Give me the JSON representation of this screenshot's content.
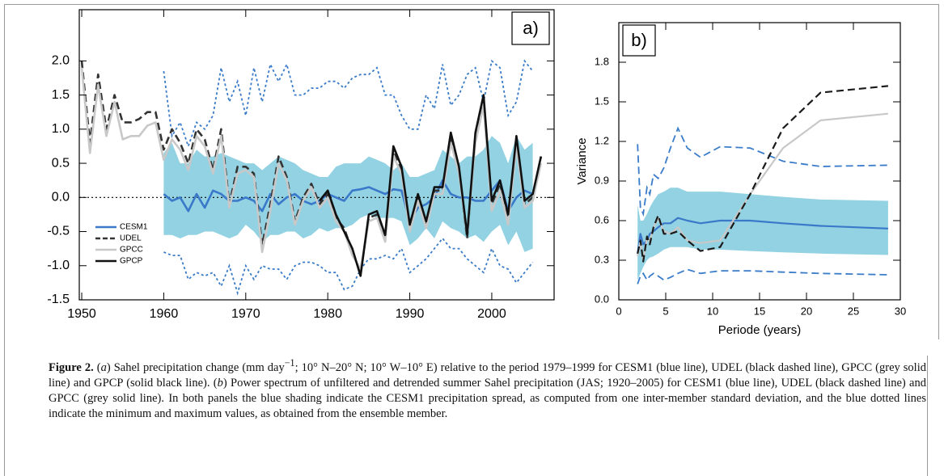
{
  "chart_data": [
    {
      "type": "line",
      "panel_label": "a)",
      "x": [
        1950,
        1951,
        1952,
        1953,
        1954,
        1955,
        1956,
        1957,
        1958,
        1959,
        1960,
        1961,
        1962,
        1963,
        1964,
        1965,
        1966,
        1967,
        1968,
        1969,
        1970,
        1971,
        1972,
        1973,
        1974,
        1975,
        1976,
        1977,
        1978,
        1979,
        1980,
        1981,
        1982,
        1983,
        1984,
        1985,
        1986,
        1987,
        1988,
        1989,
        1990,
        1991,
        1992,
        1993,
        1994,
        1995,
        1996,
        1997,
        1998,
        1999,
        2000,
        2001,
        2002,
        2003,
        2004,
        2005,
        2006
      ],
      "xlim": [
        1949.7,
        2007.6
      ],
      "xticks": [
        1950,
        1960,
        1970,
        1980,
        1990,
        2000
      ],
      "ylim": [
        -1.5,
        2.75
      ],
      "yticks": [
        {
          "value": -1.5,
          "label": "-1.5"
        },
        {
          "value": -1,
          "label": "-1.0"
        },
        {
          "value": -0.5,
          "label": "-0.5"
        },
        {
          "value": 0,
          "label": "0.0"
        },
        0.5,
        {
          "value": 1,
          "label": "1.0"
        },
        1.5,
        {
          "value": 2,
          "label": "2.0"
        }
      ],
      "reference_line": 0,
      "legend": "lower left",
      "spread": {
        "color": "#92d2e2",
        "upper": [
          null,
          null,
          null,
          null,
          null,
          null,
          null,
          null,
          null,
          null,
          0.65,
          0.8,
          0.5,
          0.5,
          0.7,
          0.6,
          0.6,
          0.65,
          0.6,
          0.55,
          0.5,
          0.5,
          0.4,
          0.5,
          0.6,
          0.55,
          0.5,
          0.4,
          0.35,
          0.3,
          0.3,
          0.45,
          0.5,
          0.5,
          0.5,
          0.6,
          0.55,
          0.5,
          0.4,
          0.5,
          0.3,
          0.3,
          0.35,
          0.4,
          0.7,
          0.6,
          0.5,
          0.6,
          0.6,
          0.7,
          0.9,
          0.8,
          0.5,
          0.9,
          0.7,
          0.8,
          null
        ],
        "lower": [
          null,
          null,
          null,
          null,
          null,
          null,
          null,
          null,
          null,
          null,
          -0.55,
          -0.55,
          -0.6,
          -0.55,
          -0.55,
          -0.5,
          -0.5,
          -0.55,
          -0.6,
          -0.55,
          -0.4,
          -0.5,
          -0.65,
          -0.55,
          -0.55,
          -0.5,
          -0.5,
          -0.6,
          -0.55,
          -0.45,
          -0.5,
          -0.45,
          -0.45,
          -0.4,
          -0.3,
          -0.25,
          -0.3,
          -0.3,
          -0.3,
          -0.35,
          -0.7,
          -0.6,
          -0.45,
          -0.6,
          -0.35,
          -0.45,
          -0.5,
          -0.6,
          -0.55,
          -0.65,
          -0.5,
          -0.4,
          -0.7,
          -0.5,
          -0.8,
          -0.75,
          null
        ]
      },
      "range": {
        "color": "#3a7cc9",
        "style": "dotted",
        "max": [
          null,
          null,
          null,
          null,
          null,
          null,
          null,
          null,
          null,
          null,
          1.85,
          0.9,
          1.1,
          0.75,
          1.1,
          1.0,
          1.2,
          1.9,
          1.4,
          1.7,
          1.2,
          1.9,
          1.4,
          1.95,
          1.7,
          1.95,
          1.5,
          1.5,
          1.6,
          1.6,
          1.7,
          1.7,
          1.6,
          1.75,
          1.8,
          1.8,
          1.9,
          1.5,
          1.5,
          1.2,
          1.0,
          1.0,
          1.5,
          1.3,
          1.95,
          1.35,
          1.5,
          1.8,
          1.9,
          1.4,
          2.0,
          1.9,
          1.2,
          1.4,
          2.0,
          1.85,
          null
        ],
        "min": [
          null,
          null,
          null,
          null,
          null,
          null,
          null,
          null,
          null,
          null,
          -0.8,
          -0.85,
          -0.85,
          -1.2,
          -1.1,
          -1.15,
          -1.1,
          -1.3,
          -1.0,
          -1.4,
          -1.0,
          -1.2,
          -1.0,
          -1.05,
          -1.05,
          -1.2,
          -1.0,
          -0.95,
          -0.95,
          -1.0,
          -1.1,
          -1.1,
          -1.35,
          -1.3,
          -1.05,
          -0.9,
          -0.9,
          -0.85,
          -0.9,
          -0.75,
          -1.1,
          -1.0,
          -0.9,
          -0.75,
          -0.6,
          -0.75,
          -0.75,
          -0.9,
          -1.0,
          -1.1,
          -0.75,
          -1.0,
          -1.05,
          -1.25,
          -1.1,
          -0.95,
          null
        ]
      },
      "series": [
        {
          "name": "CESM1",
          "color": "#3a78c9",
          "style": "solid",
          "values": [
            null,
            null,
            null,
            null,
            null,
            null,
            null,
            null,
            null,
            null,
            0.05,
            -0.05,
            0.0,
            -0.2,
            0.05,
            -0.15,
            0.1,
            0.05,
            -0.05,
            -0.05,
            0.0,
            -0.05,
            -0.2,
            0.05,
            -0.1,
            0.0,
            0.05,
            -0.05,
            -0.1,
            -0.05,
            0.05,
            0.0,
            -0.05,
            0.1,
            0.12,
            0.15,
            0.1,
            0.05,
            0.12,
            0.1,
            -0.35,
            -0.15,
            -0.1,
            0.0,
            0.25,
            0.05,
            0.0,
            0.0,
            -0.05,
            -0.05,
            0.1,
            0.25,
            -0.2,
            0.0,
            0.1,
            0.05,
            null
          ]
        },
        {
          "name": "UDEL",
          "color": "#333333",
          "style": "dashed",
          "values": [
            2.0,
            0.8,
            1.8,
            1.0,
            1.5,
            1.1,
            1.1,
            1.15,
            1.25,
            1.25,
            0.7,
            1.0,
            0.8,
            0.5,
            1.0,
            0.85,
            0.4,
            1.0,
            -0.1,
            0.45,
            0.45,
            0.35,
            -0.7,
            -0.1,
            0.6,
            0.3,
            -0.35,
            0.0,
            0.2,
            -0.1,
            0.05,
            -0.3,
            -0.45,
            -0.8,
            -1.1,
            -0.3,
            -0.25,
            -0.6,
            0.7,
            0.4,
            -0.45,
            0.0,
            -0.4,
            0.1,
            0.1,
            0.9,
            0.4,
            -0.6,
            0.9,
            1.45,
            -0.1,
            0.2,
            -0.3,
            0.85,
            -0.1,
            0.0,
            0.6
          ]
        },
        {
          "name": "GPCC",
          "color": "#c8c8c8",
          "style": "solid",
          "values": [
            1.9,
            0.65,
            1.65,
            0.9,
            1.4,
            0.85,
            0.9,
            0.9,
            1.05,
            1.1,
            0.55,
            0.85,
            0.7,
            0.4,
            0.9,
            0.75,
            0.35,
            0.9,
            -0.15,
            0.35,
            0.4,
            0.3,
            -0.8,
            -0.2,
            0.5,
            0.25,
            -0.4,
            -0.05,
            0.15,
            -0.15,
            0.0,
            -0.35,
            -0.5,
            -0.85,
            -1.05,
            -0.35,
            -0.3,
            -0.65,
            0.6,
            0.35,
            -0.5,
            -0.05,
            -0.45,
            0.05,
            0.05,
            0.8,
            0.35,
            -0.55,
            0.8,
            1.35,
            -0.2,
            0.1,
            -0.4,
            0.75,
            -0.15,
            -0.05,
            0.5
          ]
        },
        {
          "name": "GPCP",
          "color": "#111111",
          "style": "solid",
          "values": [
            null,
            null,
            null,
            null,
            null,
            null,
            null,
            null,
            null,
            null,
            null,
            null,
            null,
            null,
            null,
            null,
            null,
            null,
            null,
            null,
            null,
            null,
            null,
            null,
            null,
            null,
            null,
            null,
            null,
            -0.05,
            0.1,
            -0.25,
            -0.5,
            -0.75,
            -1.15,
            -0.25,
            -0.2,
            -0.55,
            0.75,
            0.45,
            -0.4,
            0.05,
            -0.35,
            0.15,
            0.15,
            0.95,
            0.45,
            -0.55,
            0.95,
            1.5,
            -0.05,
            0.25,
            -0.25,
            0.9,
            -0.05,
            0.05,
            0.6
          ]
        }
      ]
    },
    {
      "type": "line",
      "panel_label": "b)",
      "xlabel": "Periode (years)",
      "ylabel": "Variance",
      "x": [
        2,
        2.3,
        2.6,
        3,
        3.3,
        3.7,
        4.2,
        4.8,
        5.5,
        6.3,
        7.3,
        8.7,
        10.8,
        14,
        17.5,
        21.5,
        28.7
      ],
      "xlim": [
        0,
        30
      ],
      "xticks": [
        0,
        5,
        10,
        15,
        20,
        25,
        30
      ],
      "ylim": [
        0,
        2.1
      ],
      "yticks": [
        {
          "value": 0,
          "label": "0.0"
        },
        0.3,
        0.6,
        0.9,
        1.2,
        1.5,
        1.8
      ],
      "spread": {
        "color": "#92d2e2",
        "upper": [
          0.72,
          0.6,
          0.6,
          0.65,
          0.7,
          0.75,
          0.8,
          0.82,
          0.85,
          0.85,
          0.82,
          0.82,
          0.82,
          0.8,
          0.78,
          0.76,
          0.75
        ],
        "lower": [
          0.15,
          0.2,
          0.25,
          0.3,
          0.32,
          0.33,
          0.35,
          0.38,
          0.4,
          0.4,
          0.4,
          0.38,
          0.38,
          0.37,
          0.36,
          0.35,
          0.34
        ]
      },
      "range": {
        "color": "#3a7cc9",
        "style": "dashed",
        "max": [
          1.18,
          0.7,
          0.65,
          0.85,
          0.8,
          0.95,
          0.92,
          1.0,
          1.15,
          1.3,
          1.15,
          1.08,
          1.16,
          1.15,
          1.05,
          1.01,
          1.02
        ],
        "min": [
          0.12,
          0.18,
          0.2,
          0.15,
          0.18,
          0.2,
          0.18,
          0.15,
          0.17,
          0.2,
          0.23,
          0.2,
          0.22,
          0.22,
          0.21,
          0.2,
          0.19
        ]
      },
      "series": [
        {
          "color": "#3a78c9",
          "style": "solid",
          "values": [
            0.35,
            0.5,
            0.42,
            0.45,
            0.5,
            0.52,
            0.55,
            0.58,
            0.58,
            0.62,
            0.6,
            0.58,
            0.6,
            0.6,
            0.58,
            0.56,
            0.54
          ]
        },
        {
          "color": "#c8c8c8",
          "style": "solid",
          "values": [
            0.33,
            0.45,
            0.3,
            0.47,
            0.44,
            0.55,
            0.62,
            0.52,
            0.5,
            0.55,
            0.45,
            0.43,
            0.45,
            0.8,
            1.15,
            1.36,
            1.41
          ]
        },
        {
          "color": "#1a1a1a",
          "style": "dashed",
          "values": [
            0.35,
            0.45,
            0.29,
            0.48,
            0.42,
            0.55,
            0.64,
            0.5,
            0.5,
            0.52,
            0.45,
            0.37,
            0.4,
            0.8,
            1.3,
            1.57,
            1.62
          ]
        }
      ]
    }
  ],
  "caption": [
    {
      "text": "Figure 2.",
      "style": "bold"
    },
    {
      "text": " ("
    },
    {
      "text": "a",
      "style": "italic"
    },
    {
      "text": ") Sahel precipitation change (mm day"
    },
    {
      "text": "−1",
      "style": "sup"
    },
    {
      "text": "; 10° N–20° N; 10° W–10° E) relative to the period 1979–1999 for CESM1 (blue line), UDEL (black dashed line), GPCC (grey solid line) and GPCP (solid black line). ("
    },
    {
      "text": "b",
      "style": "italic"
    },
    {
      "text": ") Power spectrum of unfiltered and detrended summer Sahel precipitation (JAS; 1920–2005) for CESM1 (blue line), UDEL (black dashed line) and GPCC (grey solid line). In both panels the blue shading indicate the CESM1 precipitation spread, as computed from one inter-member standard deviation, and the blue dotted lines indicate the minimum and maximum values, as obtained from the ensemble member."
    }
  ]
}
